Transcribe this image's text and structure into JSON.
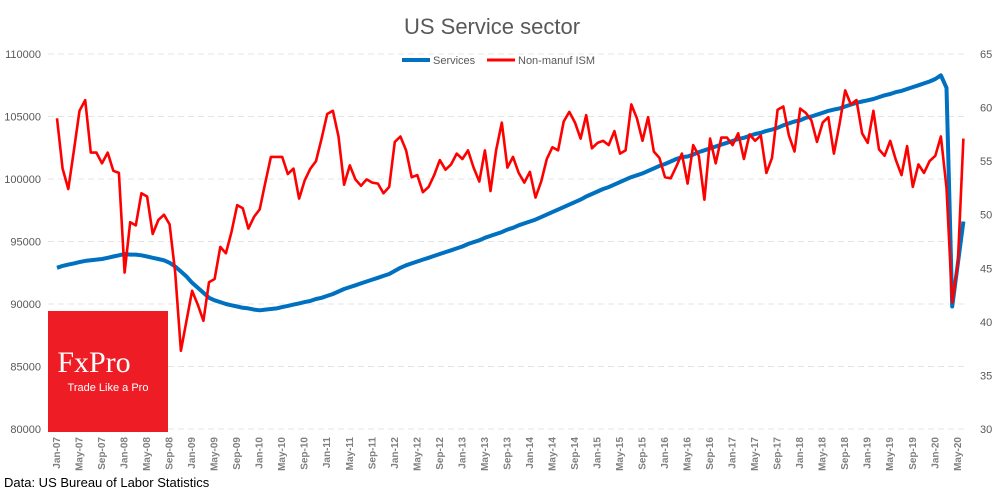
{
  "chart_data": {
    "type": "line",
    "title": "US Service sector",
    "source": "Data: US Bureau of Labor Statistics",
    "x_start": "Jan-07",
    "x_end": "Jun-20",
    "x_frequency": "monthly",
    "x_tick_labels": [
      "Jan-07",
      "May-07",
      "Sep-07",
      "Jan-08",
      "May-08",
      "Sep-08",
      "Jan-09",
      "May-09",
      "Sep-09",
      "Jan-10",
      "May-10",
      "Sep-10",
      "Jan-11",
      "May-11",
      "Sep-11",
      "Jan-12",
      "May-12",
      "Sep-12",
      "Jan-13",
      "May-13",
      "Sep-13",
      "Jan-14",
      "May-14",
      "Sep-14",
      "Jan-15",
      "May-15",
      "Sep-15",
      "Jan-16",
      "May-16",
      "Sep-16",
      "Jan-17",
      "May-17",
      "Sep-17",
      "Jan-18",
      "May-18",
      "Sep-18",
      "Jan-19",
      "May-19",
      "Sep-19",
      "Jan-20",
      "May-20"
    ],
    "y_left": {
      "lim": [
        80000,
        110000
      ],
      "ticks": [
        "80000",
        "85000",
        "90000",
        "95000",
        "100000",
        "105000",
        "110000"
      ]
    },
    "y_right": {
      "lim": [
        30,
        65
      ],
      "ticks": [
        "30",
        "35",
        "40",
        "45",
        "50",
        "55",
        "60",
        "65"
      ]
    },
    "grid": true,
    "legend": "top-center",
    "series": [
      {
        "name": "Services",
        "axis": "left",
        "color": "#0070C0",
        "values": [
          92900,
          93050,
          93150,
          93250,
          93350,
          93450,
          93500,
          93550,
          93600,
          93700,
          93800,
          93900,
          94000,
          93950,
          93950,
          93900,
          93800,
          93700,
          93600,
          93500,
          93300,
          93000,
          92600,
          92200,
          91700,
          91300,
          90900,
          90500,
          90300,
          90150,
          90000,
          89900,
          89800,
          89700,
          89650,
          89550,
          89500,
          89550,
          89600,
          89650,
          89750,
          89850,
          89950,
          90050,
          90150,
          90250,
          90400,
          90500,
          90650,
          90800,
          91000,
          91200,
          91350,
          91500,
          91650,
          91800,
          91950,
          92100,
          92250,
          92400,
          92650,
          92900,
          93100,
          93250,
          93400,
          93550,
          93700,
          93850,
          94000,
          94150,
          94300,
          94450,
          94600,
          94800,
          94950,
          95100,
          95300,
          95450,
          95600,
          95750,
          95950,
          96100,
          96300,
          96450,
          96600,
          96750,
          96950,
          97150,
          97350,
          97550,
          97750,
          97950,
          98150,
          98350,
          98600,
          98800,
          99000,
          99200,
          99350,
          99550,
          99750,
          99950,
          100150,
          100300,
          100450,
          100650,
          100850,
          101050,
          101200,
          101400,
          101600,
          101750,
          101800,
          101950,
          102150,
          102300,
          102450,
          102600,
          102750,
          102900,
          103050,
          103200,
          103300,
          103450,
          103600,
          103700,
          103850,
          103950,
          104100,
          104300,
          104450,
          104600,
          104700,
          104900,
          105000,
          105150,
          105300,
          105450,
          105550,
          105650,
          105800,
          105950,
          106100,
          106200,
          106300,
          106400,
          106550,
          106700,
          106800,
          106950,
          107050,
          107200,
          107350,
          107500,
          107650,
          107800,
          108000,
          108300,
          107300,
          89800,
          93200,
          96600
        ]
      },
      {
        "name": "Non-manuf ISM",
        "axis": "right",
        "color": "#FF0000",
        "values": [
          59.0,
          54.3,
          52.4,
          56.0,
          59.7,
          60.7,
          55.8,
          55.8,
          54.8,
          55.8,
          54.1,
          53.9,
          44.6,
          49.3,
          49.0,
          52.0,
          51.7,
          48.2,
          49.5,
          50.0,
          49.1,
          44.6,
          37.3,
          40.1,
          42.9,
          41.6,
          40.1,
          43.7,
          44.0,
          47.0,
          46.4,
          48.4,
          50.9,
          50.6,
          48.7,
          49.8,
          50.5,
          53.0,
          55.4,
          55.4,
          55.4,
          53.8,
          54.3,
          51.5,
          53.2,
          54.3,
          55.0,
          57.1,
          59.4,
          59.7,
          57.3,
          52.8,
          54.6,
          53.3,
          52.7,
          53.3,
          53.0,
          52.9,
          52.0,
          52.6,
          56.8,
          57.3,
          56.0,
          53.5,
          53.7,
          52.1,
          52.6,
          53.7,
          55.1,
          54.2,
          54.7,
          55.7,
          55.2,
          56.0,
          54.4,
          53.1,
          56.0,
          52.2,
          56.0,
          58.6,
          54.4,
          55.4,
          53.9,
          53.0,
          54.0,
          51.6,
          53.1,
          55.2,
          56.3,
          56.0,
          58.7,
          59.6,
          58.6,
          57.1,
          59.3,
          56.2,
          56.7,
          56.9,
          56.5,
          57.8,
          55.7,
          56.0,
          60.3,
          59.0,
          56.9,
          59.1,
          55.9,
          55.3,
          53.5,
          53.4,
          54.5,
          55.7,
          52.9,
          56.5,
          55.5,
          51.4,
          57.1,
          54.8,
          57.2,
          57.2,
          56.5,
          57.6,
          55.2,
          57.5,
          56.9,
          57.4,
          53.9,
          55.3,
          59.8,
          60.1,
          57.4,
          55.9,
          59.9,
          59.5,
          58.8,
          56.8,
          58.6,
          59.1,
          55.7,
          58.5,
          61.6,
          60.3,
          60.7,
          57.6,
          56.7,
          59.7,
          56.1,
          55.5,
          56.9,
          55.1,
          53.7,
          56.4,
          52.6,
          54.7,
          53.9,
          55.0,
          55.5,
          57.3,
          52.5,
          41.8,
          45.4,
          57.1
        ]
      }
    ]
  },
  "logo": {
    "brand": "FxPro",
    "tagline": "Trade Like a Pro",
    "color": "#EE1C25"
  }
}
